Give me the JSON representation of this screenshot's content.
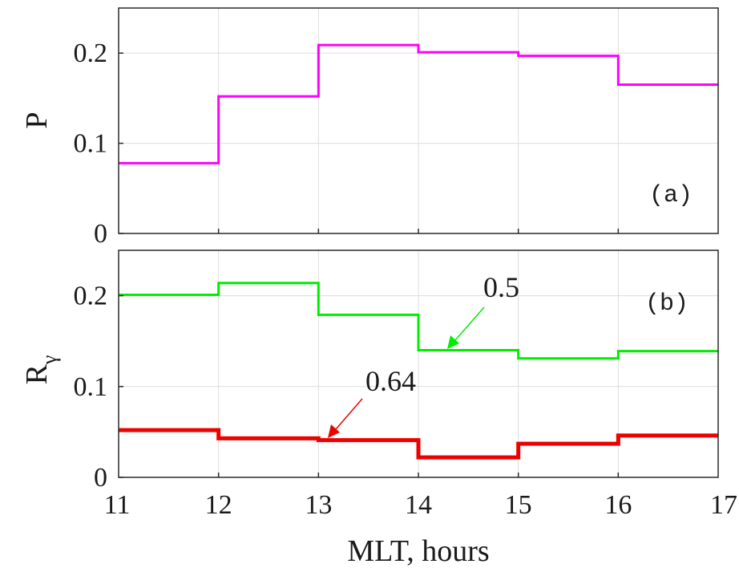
{
  "chart_data": [
    {
      "type": "line",
      "panel_label": "(a)",
      "ylabel": "P",
      "x": [
        11,
        12,
        13,
        14,
        15,
        16,
        17
      ],
      "xlim": [
        11,
        17
      ],
      "ylim": [
        0,
        0.25
      ],
      "yticks": [
        0,
        0.1,
        0.2
      ],
      "ytick_labels": [
        "0",
        "0.1",
        "0.2"
      ],
      "grid": true,
      "series": [
        {
          "color": "#ff00ff",
          "step_values": [
            0.078,
            0.152,
            0.209,
            0.201,
            0.197,
            0.165
          ]
        }
      ]
    },
    {
      "type": "line",
      "panel_label": "(b)",
      "ylabel": "R",
      "ylabel_subscript": "γ",
      "xlabel": "MLT, hours",
      "x": [
        11,
        12,
        13,
        14,
        15,
        16,
        17
      ],
      "xlim": [
        11,
        17
      ],
      "ylim": [
        0,
        0.25
      ],
      "xticks": [
        11,
        12,
        13,
        14,
        15,
        16,
        17
      ],
      "xtick_labels": [
        "11",
        "12",
        "13",
        "14",
        "15",
        "16",
        "17"
      ],
      "yticks": [
        0,
        0.1,
        0.2
      ],
      "ytick_labels": [
        "0",
        "0.1",
        "0.2"
      ],
      "grid": true,
      "series": [
        {
          "color": "#00ee00",
          "annotation": "0.5",
          "step_values": [
            0.201,
            0.214,
            0.179,
            0.14,
            0.131,
            0.139
          ]
        },
        {
          "color": "#ee0000",
          "annotation": "0.64",
          "step_values": [
            0.052,
            0.043,
            0.041,
            0.022,
            0.037,
            0.046
          ]
        }
      ]
    }
  ]
}
